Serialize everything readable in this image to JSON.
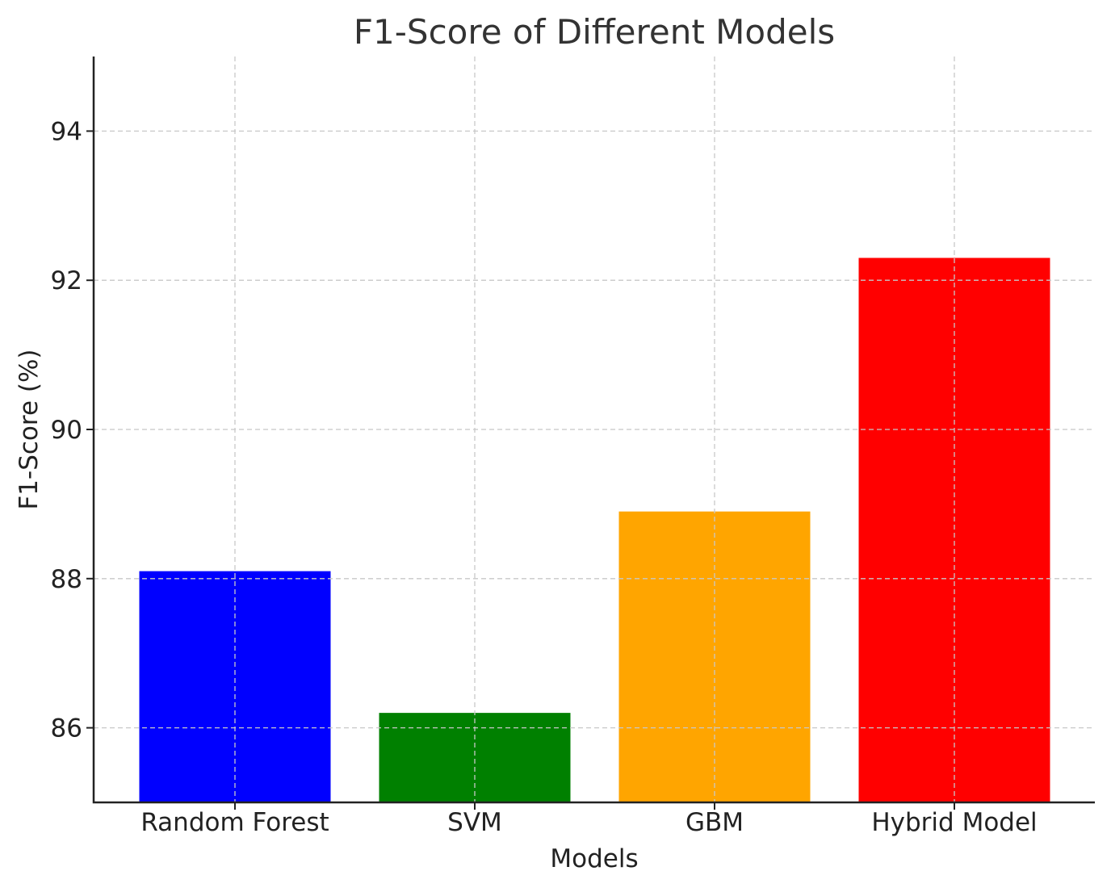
{
  "chart_data": {
    "type": "bar",
    "title": "F1-Score of Different Models",
    "xlabel": "Models",
    "ylabel": "F1-Score (%)",
    "categories": [
      "Random Forest",
      "SVM",
      "GBM",
      "Hybrid Model"
    ],
    "values": [
      88.1,
      86.2,
      88.9,
      92.3
    ],
    "colors": [
      "#0000ff",
      "#008000",
      "#ffa500",
      "#ff0000"
    ],
    "ylim": [
      85,
      95
    ],
    "yticks": [
      86,
      88,
      90,
      92,
      94
    ],
    "grid": true
  }
}
